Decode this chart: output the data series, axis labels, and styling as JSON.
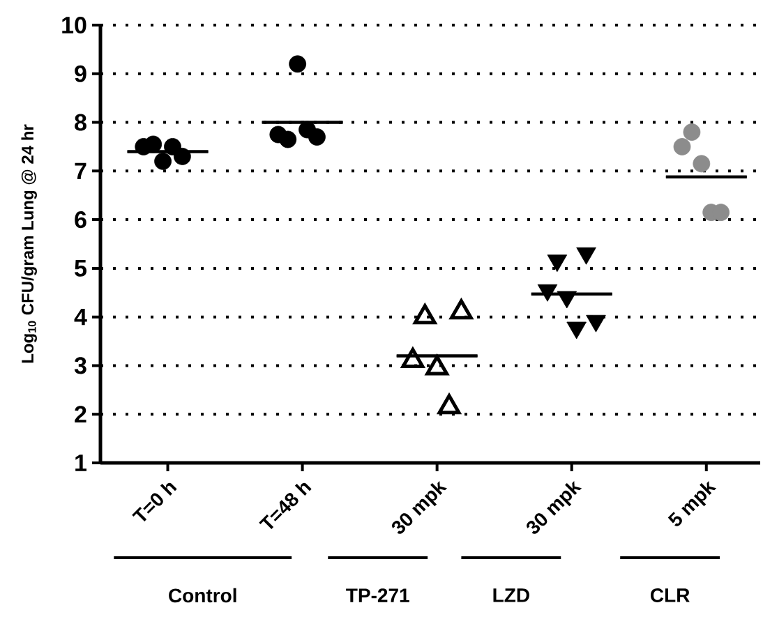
{
  "chart_data": {
    "type": "scatter",
    "ylabel": "Log$_{10}$ CFU/gram Lung @ 24 hr",
    "ylim": [
      1,
      10
    ],
    "categories": [
      "T=0 h",
      "T=48 h",
      "30 mpk",
      "30 mpk",
      "5 mpk"
    ],
    "yticks": [
      1,
      2,
      3,
      4,
      5,
      6,
      7,
      8,
      9,
      10
    ],
    "grid": "y",
    "annotations": [
      "Control",
      "TP-271",
      "LZD",
      "CLR"
    ],
    "series": [
      {
        "marker": "circle",
        "colors": [
          "#000000",
          "#000000",
          "#000000",
          "#000000",
          "#8c8c8c"
        ],
        "values": [
          7.5,
          7.75,
          null,
          null,
          7.5
        ]
      },
      {
        "marker": "circle",
        "colors": [
          "#000000",
          "#000000",
          "#000000",
          "#000000",
          "#8c8c8c"
        ],
        "values": [
          7.55,
          7.65,
          null,
          null,
          7.8
        ]
      },
      {
        "marker": "circle",
        "colors": [
          "#000000",
          "#000000",
          "#000000",
          "#000000",
          "#8c8c8c"
        ],
        "values": [
          7.2,
          9.2,
          null,
          null,
          7.15
        ]
      },
      {
        "marker": "circle",
        "colors": [
          "#000000",
          "#000000",
          "#000000",
          "#000000",
          "#8c8c8c"
        ],
        "values": [
          7.5,
          7.85,
          null,
          null,
          6.15
        ]
      },
      {
        "marker": "circle",
        "colors": [
          "#000000",
          "#000000",
          "#000000",
          "#000000",
          "#8c8c8c"
        ],
        "values": [
          7.3,
          7.7,
          null,
          null,
          6.15
        ]
      },
      {
        "marker": "triangle",
        "color": "#000000",
        "values": [
          null,
          null,
          3.1,
          null,
          null
        ]
      },
      {
        "marker": "triangle",
        "color": "#000000",
        "values": [
          null,
          null,
          4.0,
          null,
          null
        ]
      },
      {
        "marker": "triangle",
        "color": "#000000",
        "values": [
          null,
          null,
          2.95,
          null,
          null
        ]
      },
      {
        "marker": "triangle",
        "color": "#000000",
        "values": [
          null,
          null,
          2.15,
          null,
          null
        ]
      },
      {
        "marker": "triangle",
        "color": "#000000",
        "values": [
          null,
          null,
          4.1,
          null,
          null
        ]
      },
      {
        "marker": "triangle down",
        "color": "#000000",
        "values": [
          null,
          null,
          null,
          4.55,
          null
        ]
      },
      {
        "marker": "triangle down",
        "color": "#000000",
        "values": [
          null,
          null,
          null,
          5.16,
          null
        ]
      },
      {
        "marker": "triangle down",
        "color": "#000000",
        "values": [
          null,
          null,
          null,
          4.41,
          null
        ]
      },
      {
        "marker": "triangle down",
        "color": "#000000",
        "values": [
          null,
          null,
          null,
          3.78,
          null
        ]
      },
      {
        "marker": "triangle down",
        "color": "#000000",
        "values": [
          null,
          null,
          null,
          5.31,
          null
        ]
      },
      {
        "marker": "triangle down",
        "color": "#000000",
        "values": [
          null,
          null,
          null,
          3.92,
          null
        ]
      },
      {
        "type": "box",
        "color": "#000000",
        "boxes": [
          {
            "low": 7.4,
            "q1": 7.4,
            "median": 7.4,
            "q3": 7.4,
            "high": 7.4
          },
          {
            "low": 8.0,
            "q1": 8.0,
            "median": 8.0,
            "q3": 8.0,
            "high": 8.0
          },
          {
            "low": 3.2,
            "q1": 3.2,
            "median": 3.2,
            "q3": 3.2,
            "high": 3.2
          },
          {
            "low": 4.47,
            "q1": 4.47,
            "median": 4.47,
            "q3": 4.47,
            "high": 4.47
          },
          {
            "low": 6.88,
            "q1": 6.88,
            "median": 6.88,
            "q3": 6.88,
            "high": 6.88
          }
        ]
      }
    ]
  }
}
